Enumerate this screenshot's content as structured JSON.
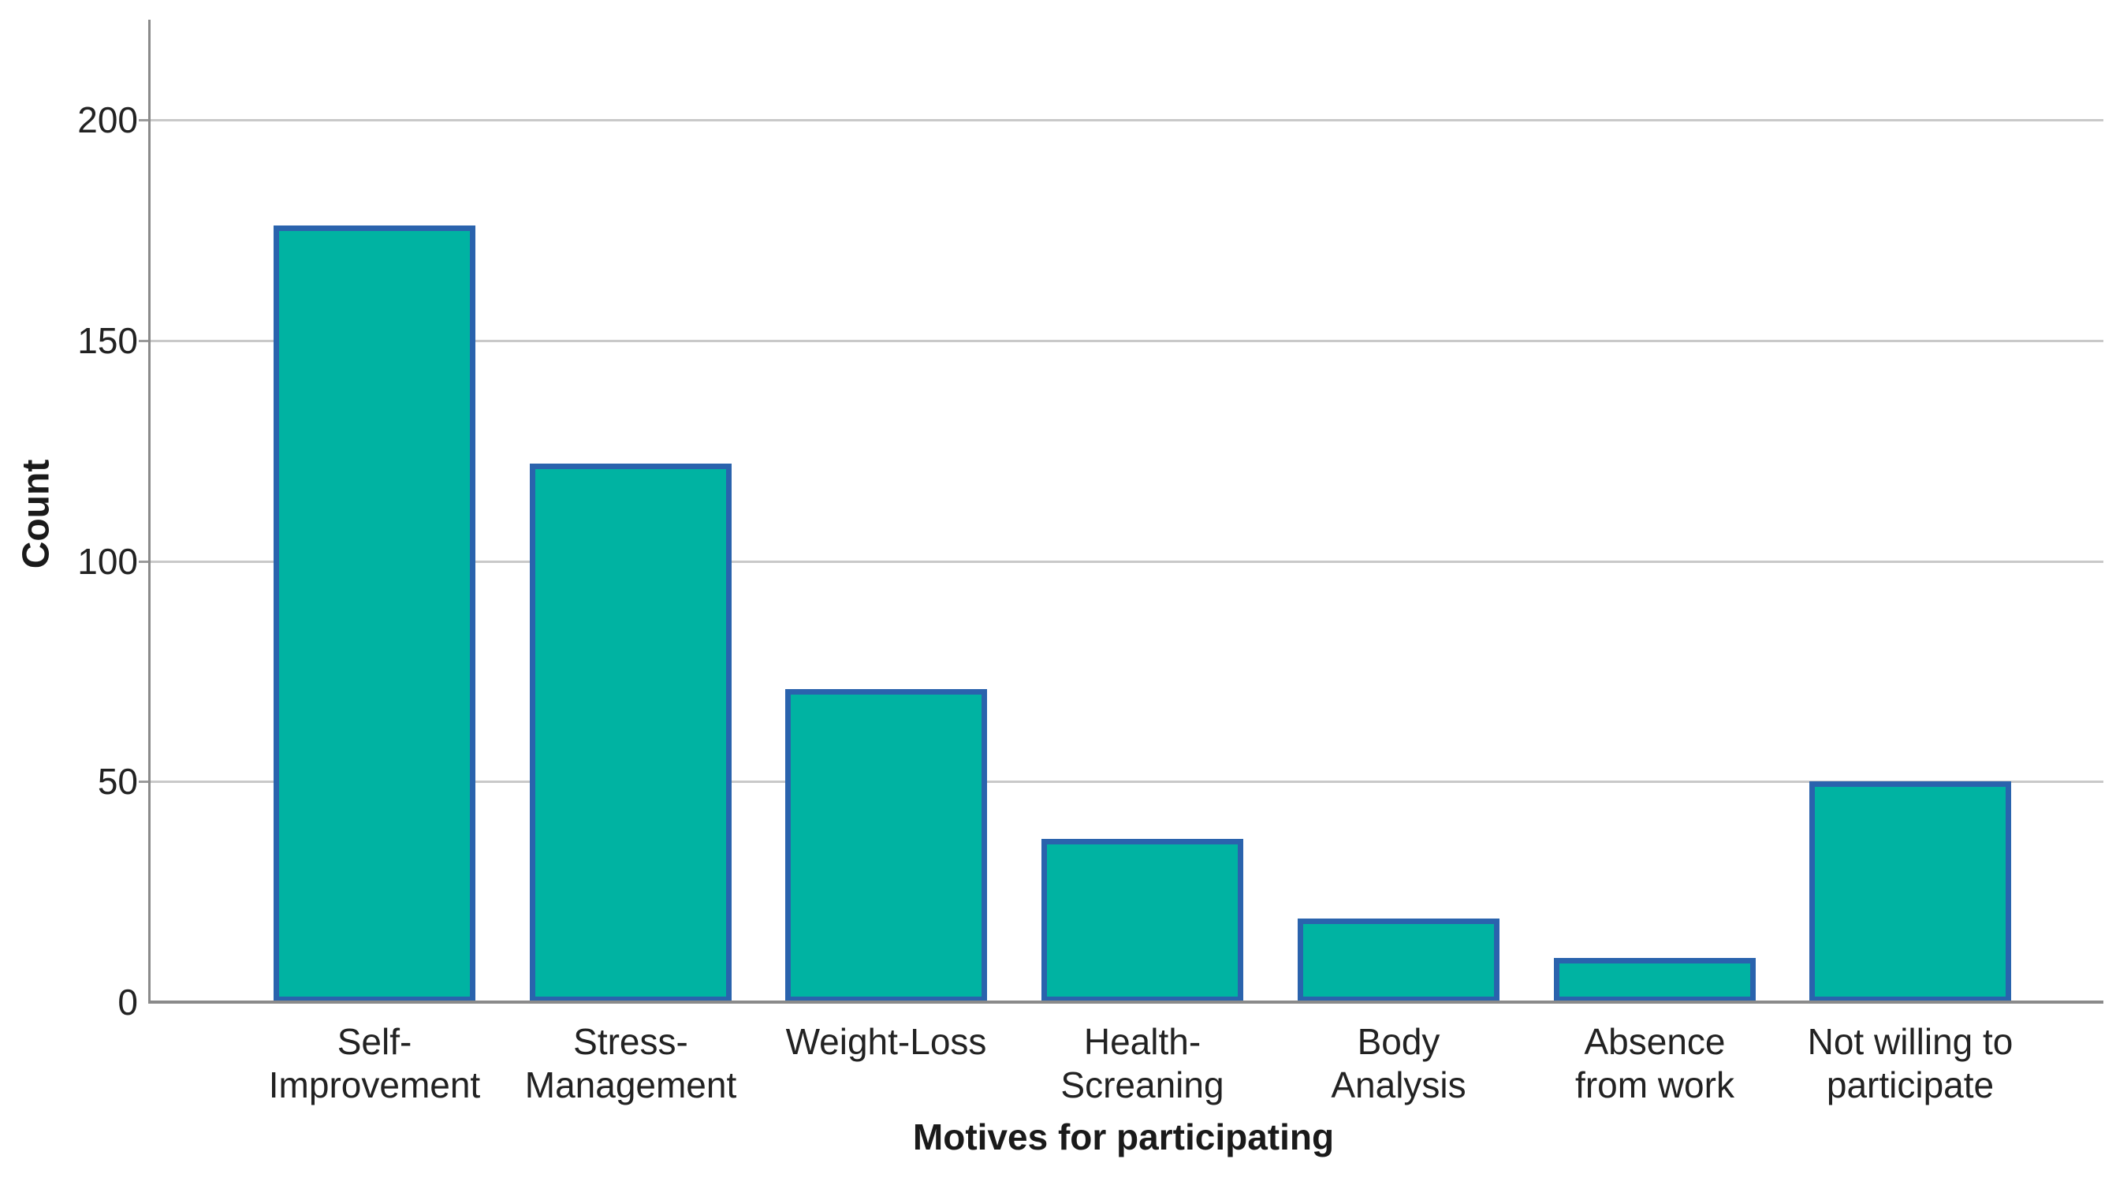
{
  "chart_data": {
    "type": "bar",
    "title": "",
    "xlabel": "Motives for participating",
    "ylabel": "Count",
    "categories": [
      "Self-\nImprovement",
      "Stress-\nManagement",
      "Weight-Loss",
      "Health-\nScreaning",
      "Body\nAnalysis",
      "Absence\nfrom work",
      "Not willing to\nparticipate"
    ],
    "values": [
      176,
      122,
      71,
      37,
      19,
      10,
      50
    ],
    "yticks": [
      0,
      50,
      100,
      150,
      200
    ],
    "ylim": [
      0,
      222
    ],
    "grid": "horizontal-gridlines",
    "legend": "none",
    "colors": {
      "bar_fill": "#00b3a2",
      "bar_border": "#2a63ad",
      "gridline": "#c9c9c9",
      "axis_line": "#8a8a8a",
      "text": "#222222",
      "background": "#ffffff"
    }
  }
}
